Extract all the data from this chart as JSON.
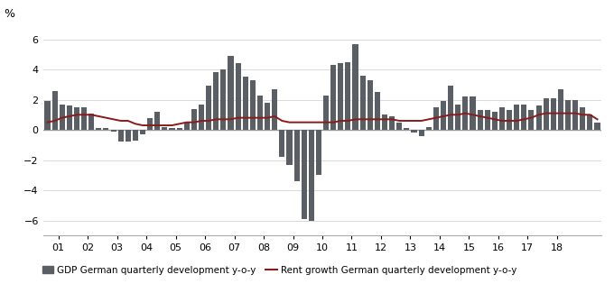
{
  "gdp": [
    1.9,
    2.6,
    1.7,
    1.6,
    1.5,
    1.5,
    1.1,
    0.1,
    0.1,
    -0.1,
    -0.8,
    -0.8,
    -0.7,
    -0.3,
    0.8,
    1.2,
    0.2,
    0.1,
    0.1,
    0.5,
    1.4,
    1.7,
    2.9,
    3.8,
    4.0,
    4.9,
    4.4,
    3.5,
    3.3,
    2.3,
    1.8,
    2.7,
    -1.8,
    -2.3,
    -3.4,
    -5.9,
    -6.0,
    -3.0,
    2.3,
    4.3,
    4.4,
    4.5,
    5.7,
    3.6,
    3.3,
    2.5,
    1.0,
    0.9,
    0.5,
    0.1,
    -0.2,
    -0.4,
    0.2,
    1.5,
    1.9,
    2.9,
    1.7,
    2.2,
    2.2,
    1.3,
    1.3,
    1.2,
    1.5,
    1.3,
    1.7,
    1.7,
    1.3,
    1.6,
    2.1,
    2.1,
    2.7,
    2.0,
    2.0,
    1.5,
    1.0,
    0.5
  ],
  "rent": [
    0.5,
    0.6,
    0.8,
    0.9,
    1.0,
    1.0,
    1.0,
    0.9,
    0.8,
    0.7,
    0.6,
    0.6,
    0.4,
    0.3,
    0.3,
    0.3,
    0.3,
    0.3,
    0.4,
    0.5,
    0.5,
    0.6,
    0.6,
    0.7,
    0.7,
    0.7,
    0.8,
    0.8,
    0.8,
    0.8,
    0.8,
    0.9,
    0.6,
    0.5,
    0.5,
    0.5,
    0.5,
    0.5,
    0.5,
    0.5,
    0.6,
    0.6,
    0.7,
    0.7,
    0.7,
    0.7,
    0.7,
    0.7,
    0.6,
    0.6,
    0.6,
    0.6,
    0.7,
    0.8,
    0.9,
    1.0,
    1.0,
    1.1,
    1.0,
    0.9,
    0.8,
    0.7,
    0.6,
    0.6,
    0.6,
    0.7,
    0.8,
    1.0,
    1.1,
    1.1,
    1.1,
    1.1,
    1.1,
    1.0,
    1.0,
    0.7
  ],
  "x_tick_labels": [
    "01",
    "02",
    "03",
    "04",
    "05",
    "06",
    "07",
    "08",
    "09",
    "10",
    "11",
    "12",
    "13",
    "14",
    "15",
    "16",
    "17",
    "18"
  ],
  "bar_color": "#595f65",
  "line_color": "#8b1a1a",
  "ylim": [
    -7,
    7
  ],
  "yticks": [
    -6,
    -4,
    -2,
    0,
    2,
    4,
    6
  ],
  "pct_label": "%",
  "legend_bar_label": "GDP German quarterly development y-o-y",
  "legend_line_label": "Rent growth German quarterly development y-o-y",
  "background_color": "#ffffff",
  "figsize": [
    6.8,
    3.35
  ],
  "dpi": 100
}
